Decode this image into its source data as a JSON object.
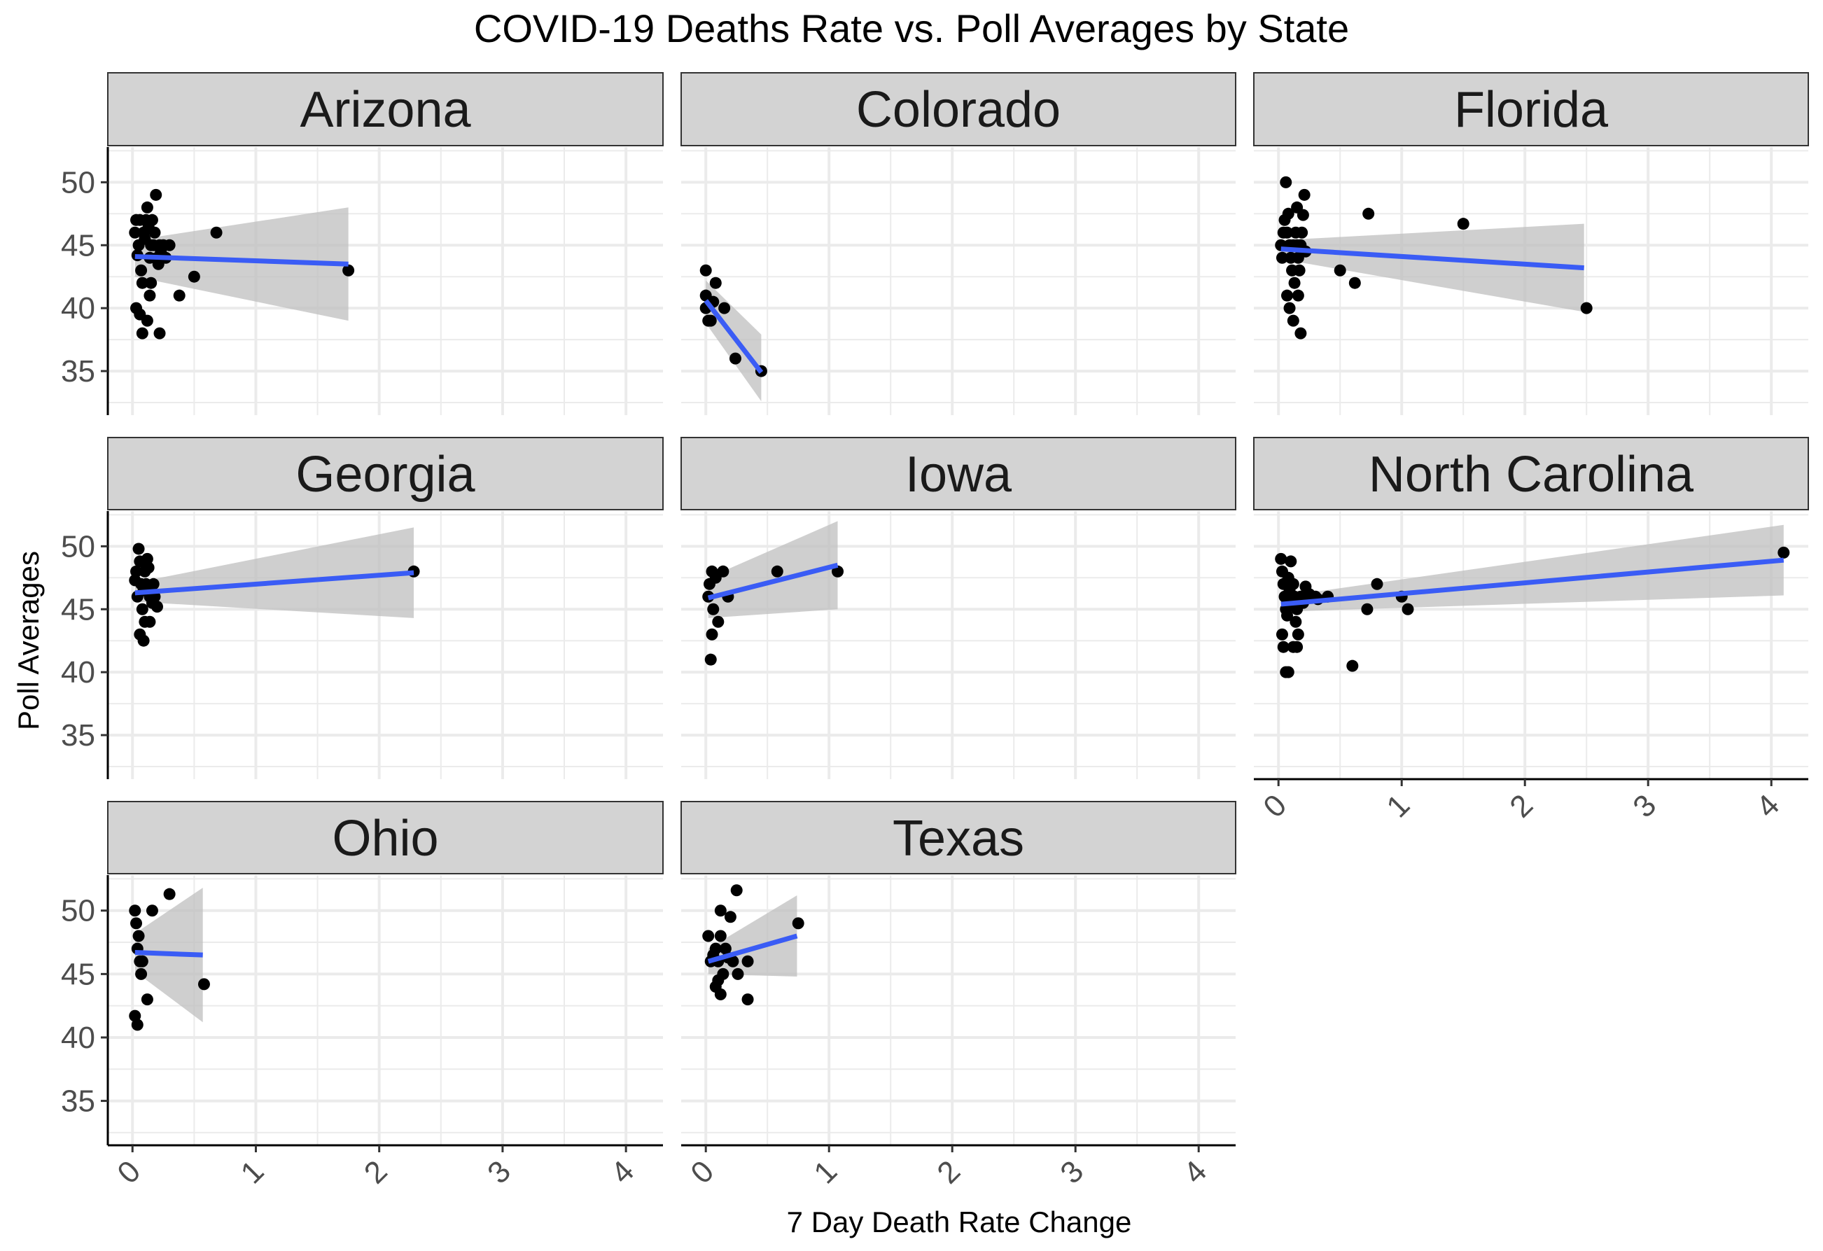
{
  "chart_data": {
    "type": "scatter",
    "title": "COVID-19 Deaths Rate vs. Poll Averages by State",
    "xlabel": "7 Day Death Rate Change",
    "ylabel": "Poll Averages",
    "xlim": [
      -0.2,
      4.3
    ],
    "ylim": [
      31.5,
      52.8
    ],
    "x_ticks": [
      "0",
      "1",
      "2",
      "3",
      "4"
    ],
    "y_ticks": [
      "35",
      "40",
      "45",
      "50"
    ],
    "grid": true,
    "colors": {
      "points": "#000000",
      "fit_line": "#3a5cf5",
      "ribbon": "#bfbfbf",
      "strip_fill": "#d3d3d3",
      "grid": "#ebebeb"
    },
    "facets": [
      {
        "name": "Arizona",
        "points": [
          [
            0.02,
            46
          ],
          [
            0.03,
            47
          ],
          [
            0.04,
            44.2
          ],
          [
            0.05,
            45
          ],
          [
            0.06,
            47
          ],
          [
            0.07,
            43
          ],
          [
            0.08,
            42
          ],
          [
            0.09,
            46
          ],
          [
            0.1,
            45.5
          ],
          [
            0.11,
            47
          ],
          [
            0.12,
            48
          ],
          [
            0.13,
            46.5
          ],
          [
            0.14,
            44
          ],
          [
            0.15,
            45
          ],
          [
            0.16,
            47
          ],
          [
            0.17,
            45
          ],
          [
            0.18,
            46
          ],
          [
            0.19,
            49
          ],
          [
            0.2,
            44
          ],
          [
            0.21,
            43.5
          ],
          [
            0.22,
            45
          ],
          [
            0.23,
            44.5
          ],
          [
            0.25,
            45
          ],
          [
            0.27,
            44
          ],
          [
            0.3,
            45
          ],
          [
            0.03,
            40
          ],
          [
            0.06,
            39.5
          ],
          [
            0.08,
            38
          ],
          [
            0.12,
            39
          ],
          [
            0.15,
            42
          ],
          [
            0.14,
            41
          ],
          [
            0.22,
            38
          ],
          [
            0.38,
            41
          ],
          [
            0.5,
            42.5
          ],
          [
            0.68,
            46
          ],
          [
            1.75,
            43
          ]
        ],
        "fit": {
          "x": [
            0.02,
            1.75
          ],
          "y": [
            44.1,
            43.5
          ],
          "lower": [
            42.5,
            39.0
          ],
          "upper": [
            45.4,
            48.0
          ]
        }
      },
      {
        "name": "Colorado",
        "points": [
          [
            0.0,
            43
          ],
          [
            0.0,
            41
          ],
          [
            0.0,
            40
          ],
          [
            0.02,
            39
          ],
          [
            0.04,
            39
          ],
          [
            0.06,
            40.5
          ],
          [
            0.08,
            42
          ],
          [
            0.15,
            40
          ],
          [
            0.24,
            36
          ],
          [
            0.45,
            35
          ]
        ],
        "fit": {
          "x": [
            0.0,
            0.45
          ],
          "y": [
            40.6,
            34.9
          ],
          "lower": [
            38.8,
            32.6
          ],
          "upper": [
            42.2,
            37.9
          ]
        }
      },
      {
        "name": "Florida",
        "points": [
          [
            0.02,
            45
          ],
          [
            0.03,
            44
          ],
          [
            0.04,
            46
          ],
          [
            0.05,
            47
          ],
          [
            0.06,
            50
          ],
          [
            0.07,
            46
          ],
          [
            0.08,
            47.5
          ],
          [
            0.09,
            45
          ],
          [
            0.1,
            44
          ],
          [
            0.11,
            43
          ],
          [
            0.12,
            45
          ],
          [
            0.13,
            42
          ],
          [
            0.14,
            46
          ],
          [
            0.15,
            45
          ],
          [
            0.16,
            44
          ],
          [
            0.17,
            43
          ],
          [
            0.18,
            45
          ],
          [
            0.19,
            46
          ],
          [
            0.2,
            47.4
          ],
          [
            0.21,
            49
          ],
          [
            0.22,
            44.5
          ],
          [
            0.07,
            41
          ],
          [
            0.09,
            40
          ],
          [
            0.12,
            39
          ],
          [
            0.16,
            41
          ],
          [
            0.18,
            38
          ],
          [
            0.15,
            48
          ],
          [
            0.5,
            43
          ],
          [
            0.62,
            42
          ],
          [
            0.73,
            47.5
          ],
          [
            1.5,
            46.7
          ],
          [
            2.5,
            40
          ]
        ],
        "fit": {
          "x": [
            0.02,
            2.48
          ],
          "y": [
            44.7,
            43.2
          ],
          "lower": [
            43.9,
            39.7
          ],
          "upper": [
            45.4,
            46.7
          ]
        }
      },
      {
        "name": "Georgia",
        "points": [
          [
            0.02,
            47.3
          ],
          [
            0.03,
            48
          ],
          [
            0.04,
            46
          ],
          [
            0.05,
            49.8
          ],
          [
            0.06,
            48.8
          ],
          [
            0.07,
            47
          ],
          [
            0.08,
            45
          ],
          [
            0.09,
            46.5
          ],
          [
            0.1,
            48
          ],
          [
            0.11,
            47
          ],
          [
            0.12,
            49
          ],
          [
            0.13,
            48.3
          ],
          [
            0.14,
            46
          ],
          [
            0.15,
            46.5
          ],
          [
            0.16,
            45.5
          ],
          [
            0.17,
            47
          ],
          [
            0.18,
            46
          ],
          [
            0.2,
            45.2
          ],
          [
            0.06,
            43
          ],
          [
            0.09,
            42.5
          ],
          [
            0.1,
            44
          ],
          [
            0.14,
            44
          ],
          [
            2.28,
            48
          ]
        ],
        "fit": {
          "x": [
            0.02,
            2.28
          ],
          "y": [
            46.3,
            47.9
          ],
          "lower": [
            45.6,
            44.3
          ],
          "upper": [
            47.1,
            51.5
          ]
        }
      },
      {
        "name": "Iowa",
        "points": [
          [
            0.02,
            46
          ],
          [
            0.03,
            47
          ],
          [
            0.05,
            48
          ],
          [
            0.06,
            45
          ],
          [
            0.08,
            47.5
          ],
          [
            0.1,
            44
          ],
          [
            0.14,
            48
          ],
          [
            0.18,
            46
          ],
          [
            0.05,
            43
          ],
          [
            0.04,
            41
          ],
          [
            0.58,
            48
          ],
          [
            1.07,
            48
          ]
        ],
        "fit": {
          "x": [
            0.02,
            1.07
          ],
          "y": [
            45.9,
            48.5
          ],
          "lower": [
            44.3,
            45.0
          ],
          "upper": [
            47.5,
            52.0
          ]
        }
      },
      {
        "name": "North Carolina",
        "points": [
          [
            0.02,
            49
          ],
          [
            0.03,
            48
          ],
          [
            0.04,
            47
          ],
          [
            0.05,
            46
          ],
          [
            0.06,
            45
          ],
          [
            0.07,
            44.5
          ],
          [
            0.08,
            47.5
          ],
          [
            0.09,
            46.5
          ],
          [
            0.1,
            48.8
          ],
          [
            0.11,
            45.5
          ],
          [
            0.12,
            47
          ],
          [
            0.13,
            46
          ],
          [
            0.14,
            44
          ],
          [
            0.15,
            45
          ],
          [
            0.16,
            43
          ],
          [
            0.18,
            46
          ],
          [
            0.2,
            45.5
          ],
          [
            0.22,
            46.8
          ],
          [
            0.25,
            46.2
          ],
          [
            0.3,
            46
          ],
          [
            0.32,
            45.8
          ],
          [
            0.4,
            46
          ],
          [
            0.03,
            43
          ],
          [
            0.04,
            42
          ],
          [
            0.06,
            40
          ],
          [
            0.08,
            40
          ],
          [
            0.12,
            42
          ],
          [
            0.15,
            42
          ],
          [
            0.6,
            40.5
          ],
          [
            0.72,
            45
          ],
          [
            0.8,
            47
          ],
          [
            1.0,
            46
          ],
          [
            1.05,
            45
          ],
          [
            4.1,
            49.5
          ]
        ],
        "fit": {
          "x": [
            0.02,
            4.1
          ],
          "y": [
            45.4,
            48.9
          ],
          "lower": [
            44.8,
            46.1
          ],
          "upper": [
            46.0,
            51.7
          ]
        }
      },
      {
        "name": "Ohio",
        "points": [
          [
            0.02,
            50
          ],
          [
            0.03,
            49
          ],
          [
            0.04,
            47
          ],
          [
            0.05,
            48
          ],
          [
            0.06,
            46
          ],
          [
            0.07,
            45
          ],
          [
            0.08,
            46
          ],
          [
            0.02,
            41.7
          ],
          [
            0.04,
            41
          ],
          [
            0.12,
            43
          ],
          [
            0.16,
            50
          ],
          [
            0.3,
            51.3
          ],
          [
            0.58,
            44.2
          ]
        ],
        "fit": {
          "x": [
            0.02,
            0.57
          ],
          "y": [
            46.7,
            46.5
          ],
          "lower": [
            45.2,
            41.2
          ],
          "upper": [
            48.2,
            51.8
          ]
        }
      },
      {
        "name": "Texas",
        "points": [
          [
            0.02,
            48
          ],
          [
            0.04,
            46
          ],
          [
            0.06,
            46.5
          ],
          [
            0.08,
            47
          ],
          [
            0.1,
            46
          ],
          [
            0.12,
            48
          ],
          [
            0.14,
            45
          ],
          [
            0.16,
            47
          ],
          [
            0.18,
            46.3
          ],
          [
            0.2,
            49.5
          ],
          [
            0.22,
            46
          ],
          [
            0.25,
            51.6
          ],
          [
            0.12,
            50
          ],
          [
            0.08,
            44
          ],
          [
            0.1,
            44.5
          ],
          [
            0.12,
            43.4
          ],
          [
            0.26,
            45
          ],
          [
            0.34,
            46
          ],
          [
            0.34,
            43
          ],
          [
            0.75,
            49
          ]
        ],
        "fit": {
          "x": [
            0.02,
            0.74
          ],
          "y": [
            46.0,
            48.0
          ],
          "lower": [
            45.0,
            44.8
          ],
          "upper": [
            47.0,
            51.2
          ]
        }
      }
    ]
  }
}
